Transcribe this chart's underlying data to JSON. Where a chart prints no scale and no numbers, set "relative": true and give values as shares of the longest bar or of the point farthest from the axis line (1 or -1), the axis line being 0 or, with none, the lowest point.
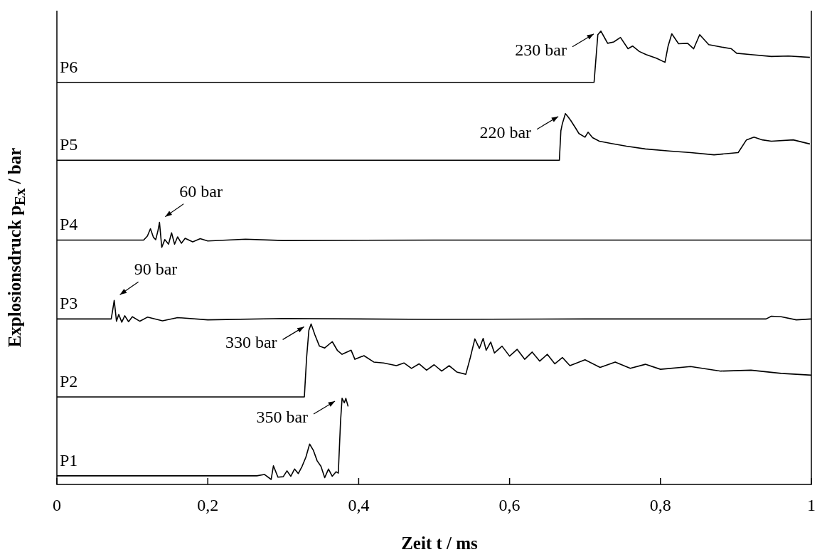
{
  "chart_data": {
    "type": "line",
    "relative": true,
    "xlabel": "Zeit t / ms",
    "ylabel": "Explosionsdruck p$_{Ex}$ / bar",
    "xlim": [
      0,
      1
    ],
    "xticks": [
      0,
      {
        "value": 0.2,
        "label": "0,2"
      },
      {
        "value": 0.4,
        "label": "0,4"
      },
      {
        "value": 0.6,
        "label": "0,6"
      },
      {
        "value": 0.8,
        "label": "0,8"
      },
      1
    ],
    "grid": false,
    "legend": false,
    "marker": "none",
    "line_style": "solid",
    "series": [
      {
        "name": "P1",
        "color": "#000000",
        "x": [
          0,
          0.265,
          0.275,
          0.284,
          0.287,
          0.293,
          0.3,
          0.305,
          0.31,
          0.315,
          0.32,
          0.325,
          0.33,
          0.335,
          0.34,
          0.345,
          0.35,
          0.355,
          0.36,
          0.365,
          0.37,
          0.373,
          0.376,
          0.378,
          0.381,
          0.383,
          0.386
        ],
        "values": [
          0.019,
          0.019,
          0.022,
          0.011,
          0.041,
          0.016,
          0.017,
          0.03,
          0.018,
          0.034,
          0.024,
          0.04,
          0.06,
          0.089,
          0.075,
          0.052,
          0.04,
          0.015,
          0.034,
          0.018,
          0.028,
          0.025,
          0.14,
          0.19,
          0.18,
          0.19,
          0.172
        ]
      },
      {
        "name": "P2",
        "color": "#000000",
        "x": [
          0,
          0.328,
          0.331,
          0.334,
          0.337,
          0.342,
          0.348,
          0.355,
          0.365,
          0.372,
          0.378,
          0.39,
          0.395,
          0.407,
          0.42,
          0.433,
          0.45,
          0.46,
          0.47,
          0.48,
          0.49,
          0.5,
          0.51,
          0.52,
          0.53,
          0.542,
          0.548,
          0.554,
          0.56,
          0.565,
          0.569,
          0.575,
          0.58,
          0.59,
          0.6,
          0.61,
          0.62,
          0.63,
          0.64,
          0.65,
          0.66,
          0.67,
          0.68,
          0.7,
          0.72,
          0.74,
          0.76,
          0.78,
          0.8,
          0.84,
          0.88,
          0.92,
          0.96,
          1
        ],
        "values": [
          0.193,
          0.193,
          0.28,
          0.34,
          0.354,
          0.33,
          0.305,
          0.301,
          0.315,
          0.295,
          0.287,
          0.296,
          0.276,
          0.284,
          0.27,
          0.268,
          0.262,
          0.268,
          0.256,
          0.266,
          0.252,
          0.264,
          0.25,
          0.262,
          0.248,
          0.243,
          0.28,
          0.321,
          0.3,
          0.322,
          0.296,
          0.314,
          0.29,
          0.305,
          0.283,
          0.298,
          0.276,
          0.292,
          0.272,
          0.287,
          0.266,
          0.28,
          0.262,
          0.275,
          0.258,
          0.27,
          0.256,
          0.265,
          0.254,
          0.26,
          0.25,
          0.252,
          0.245,
          0.241
        ]
      },
      {
        "name": "P3",
        "color": "#000000",
        "x": [
          0,
          0.072,
          0.074,
          0.076,
          0.079,
          0.082,
          0.086,
          0.09,
          0.095,
          0.1,
          0.11,
          0.12,
          0.14,
          0.16,
          0.2,
          0.3,
          0.5,
          0.7,
          0.94,
          0.947,
          0.96,
          0.98,
          1
        ],
        "values": [
          0.365,
          0.365,
          0.385,
          0.406,
          0.36,
          0.375,
          0.358,
          0.372,
          0.359,
          0.37,
          0.36,
          0.369,
          0.361,
          0.368,
          0.363,
          0.366,
          0.364,
          0.365,
          0.365,
          0.371,
          0.37,
          0.363,
          0.365
        ]
      },
      {
        "name": "P4",
        "color": "#000000",
        "x": [
          0,
          0.115,
          0.12,
          0.124,
          0.128,
          0.131,
          0.134,
          0.136,
          0.139,
          0.143,
          0.148,
          0.152,
          0.156,
          0.16,
          0.165,
          0.17,
          0.18,
          0.19,
          0.2,
          0.25,
          0.3,
          0.5,
          1
        ],
        "values": [
          0.539,
          0.539,
          0.548,
          0.564,
          0.545,
          0.54,
          0.56,
          0.578,
          0.523,
          0.54,
          0.53,
          0.555,
          0.53,
          0.546,
          0.532,
          0.543,
          0.535,
          0.542,
          0.537,
          0.541,
          0.538,
          0.539,
          0.539
        ]
      },
      {
        "name": "P5",
        "color": "#000000",
        "x": [
          0,
          0.666,
          0.668,
          0.67,
          0.674,
          0.677,
          0.681,
          0.686,
          0.692,
          0.7,
          0.704,
          0.71,
          0.719,
          0.735,
          0.755,
          0.78,
          0.814,
          0.84,
          0.871,
          0.89,
          0.903,
          0.914,
          0.924,
          0.935,
          0.947,
          0.976,
          0.998
        ],
        "values": [
          0.715,
          0.715,
          0.78,
          0.796,
          0.818,
          0.812,
          0.803,
          0.79,
          0.774,
          0.766,
          0.777,
          0.765,
          0.757,
          0.752,
          0.746,
          0.74,
          0.735,
          0.732,
          0.727,
          0.73,
          0.732,
          0.76,
          0.766,
          0.76,
          0.757,
          0.76,
          0.751
        ]
      },
      {
        "name": "P6",
        "color": "#000000",
        "x": [
          0,
          0.712,
          0.715,
          0.717,
          0.721,
          0.726,
          0.73,
          0.738,
          0.747,
          0.757,
          0.763,
          0.772,
          0.781,
          0.795,
          0.806,
          0.81,
          0.815,
          0.824,
          0.836,
          0.844,
          0.852,
          0.864,
          0.88,
          0.894,
          0.901,
          0.92,
          0.947,
          0.97,
          0.998
        ],
        "values": [
          0.887,
          0.887,
          0.95,
          0.992,
          1,
          0.985,
          0.973,
          0.976,
          0.986,
          0.961,
          0.967,
          0.955,
          0.948,
          0.94,
          0.931,
          0.966,
          0.994,
          0.972,
          0.973,
          0.961,
          0.992,
          0.97,
          0.965,
          0.961,
          0.951,
          0.948,
          0.944,
          0.945,
          0.942
        ]
      }
    ],
    "annotations": [
      {
        "text": "350 bar",
        "x": 0.378,
        "y": 0.19
      },
      {
        "text": "330 bar",
        "x": 0.337,
        "y": 0.354
      },
      {
        "text": "90 bar",
        "x": 0.076,
        "y": 0.406
      },
      {
        "text": "60 bar",
        "x": 0.136,
        "y": 0.578
      },
      {
        "text": "220 bar",
        "x": 0.674,
        "y": 0.818
      },
      {
        "text": "230 bar",
        "x": 0.721,
        "y": 1
      }
    ]
  }
}
